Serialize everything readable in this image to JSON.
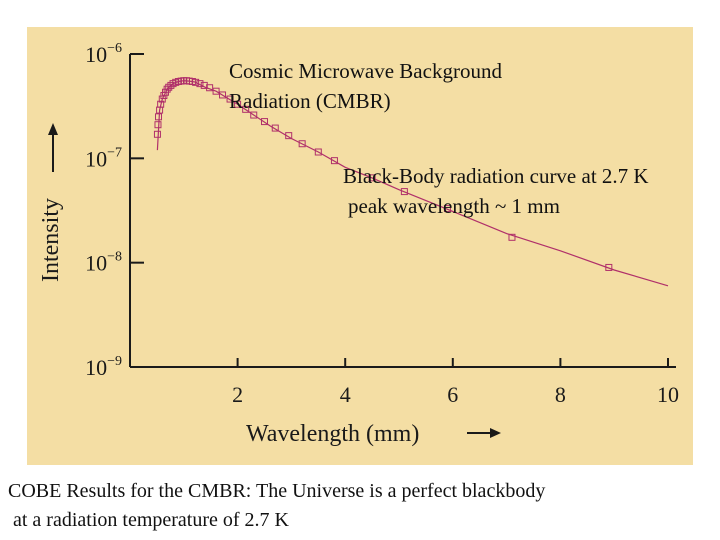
{
  "chart_data": {
    "type": "scatter",
    "xlabel": "Wavelength (mm)",
    "ylabel": "Intensity",
    "xlim": [
      0.3,
      10
    ],
    "ylim": [
      1e-09,
      1e-06
    ],
    "y_scale": "log",
    "x_ticks": [
      "2",
      "4",
      "6",
      "8",
      "10"
    ],
    "y_ticks": [
      {
        "base": "10",
        "exp": "−6"
      },
      {
        "base": "10",
        "exp": "−7"
      },
      {
        "base": "10",
        "exp": "−8"
      },
      {
        "base": "10",
        "exp": "−9"
      }
    ],
    "series": [
      {
        "points": [
          [
            0.51,
            1.7e-07
          ],
          [
            0.52,
            2.1e-07
          ],
          [
            0.53,
            2.5e-07
          ],
          [
            0.55,
            2.9e-07
          ],
          [
            0.57,
            3.3e-07
          ],
          [
            0.6,
            3.7e-07
          ],
          [
            0.63,
            4e-07
          ],
          [
            0.66,
            4.3e-07
          ],
          [
            0.69,
            4.6e-07
          ],
          [
            0.72,
            4.8e-07
          ],
          [
            0.76,
            5e-07
          ],
          [
            0.8,
            5.2e-07
          ],
          [
            0.85,
            5.35e-07
          ],
          [
            0.9,
            5.45e-07
          ],
          [
            0.95,
            5.5e-07
          ],
          [
            1.0,
            5.55e-07
          ],
          [
            1.05,
            5.55e-07
          ],
          [
            1.1,
            5.5e-07
          ],
          [
            1.16,
            5.45e-07
          ],
          [
            1.22,
            5.35e-07
          ],
          [
            1.3,
            5.2e-07
          ],
          [
            1.38,
            5e-07
          ],
          [
            1.48,
            4.75e-07
          ],
          [
            1.6,
            4.4e-07
          ],
          [
            1.72,
            4.05e-07
          ],
          [
            1.86,
            3.7e-07
          ],
          [
            2.0,
            3.3e-07
          ],
          [
            2.15,
            2.95e-07
          ],
          [
            2.3,
            2.6e-07
          ],
          [
            2.5,
            2.25e-07
          ],
          [
            2.7,
            1.95e-07
          ],
          [
            2.95,
            1.65e-07
          ],
          [
            3.2,
            1.38e-07
          ],
          [
            3.5,
            1.15e-07
          ],
          [
            3.8,
            9.5e-08
          ],
          [
            4.5,
            6.5e-08
          ],
          [
            5.1,
            4.8e-08
          ],
          [
            5.9,
            3.3e-08
          ],
          [
            7.1,
            1.75e-08
          ],
          [
            8.9,
            9e-09
          ]
        ]
      }
    ],
    "curve": {
      "x": [
        0.51,
        0.55,
        0.6,
        0.7,
        0.8,
        0.9,
        1.0,
        1.1,
        1.2,
        1.4,
        1.6,
        1.8,
        2.0,
        2.3,
        2.6,
        3.0,
        3.5,
        4.0,
        4.5,
        5.0,
        6.0,
        7.0,
        8.0,
        9.0,
        10.0
      ],
      "y": [
        1.2e-07,
        2.9e-07,
        3.7e-07,
        4.7e-07,
        5.2e-07,
        5.45e-07,
        5.55e-07,
        5.5e-07,
        5.4e-07,
        4.8e-07,
        4.4e-07,
        3.8e-07,
        3.3e-07,
        2.6e-07,
        2.05e-07,
        1.55e-07,
        1.15e-07,
        8.2e-08,
        6.5e-08,
        5e-08,
        3.1e-08,
        1.9e-08,
        1.3e-08,
        8.5e-09,
        6e-09
      ]
    },
    "annotations": [
      "Cosmic Microwave Background",
      "Radiation (CMBR)",
      "Black-Body radiation curve at 2.7 K",
      "peak wavelength ~ 1 mm"
    ],
    "colors": {
      "panel": "#f4dea4",
      "series": "#b0306a",
      "axis": "#1a1a1a"
    }
  },
  "caption": {
    "line1": "COBE Results for the CMBR: The Universe is a perfect blackbody",
    "line2": " at a radiation temperature of 2.7 K"
  }
}
